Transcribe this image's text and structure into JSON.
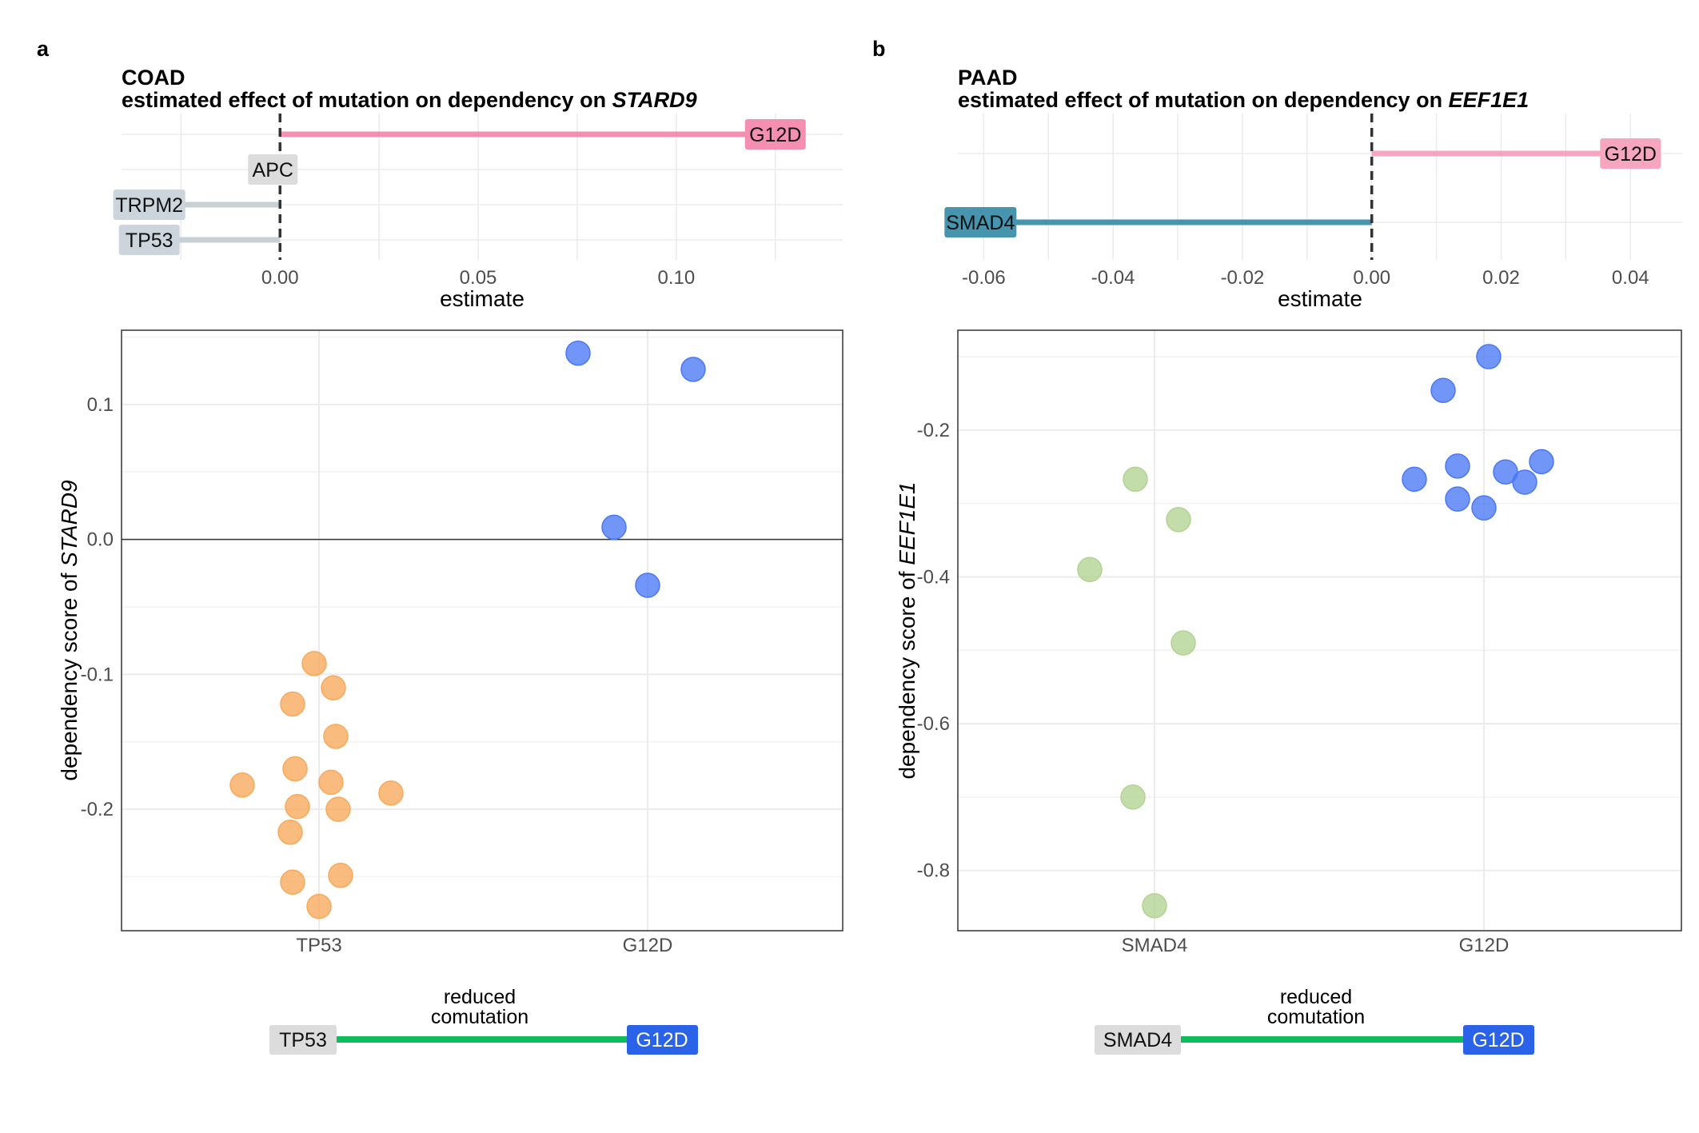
{
  "colors": {
    "g12d_pink": "#f48fb1",
    "g12d_pink_light": "#f7a6bf",
    "smad4_teal": "#4694ae",
    "gray_label": "#dcdcdc",
    "gray_bar": "#c8d0d6",
    "gray_label_blue": "#ccd5dc",
    "orange_point": "#f8a95a",
    "blue_point": "#4a78f5",
    "green_point": "#b2d392",
    "comut_green": "#0dbc5a",
    "g12d_blue_label": "#2a63e8"
  },
  "panels": [
    {
      "letter": "a",
      "title_line1": "COAD",
      "title_line2_prefix": "estimated effect of mutation on dependency on ",
      "gene": "STARD9",
      "chart_data": [
        {
          "type": "bar",
          "orientation": "horizontal",
          "xlabel": "estimate",
          "xticks": [
            0.0,
            0.05,
            0.1
          ],
          "xtick_labels": [
            "0.00",
            "0.05",
            "0.10"
          ],
          "xlim": [
            -0.04,
            0.142
          ],
          "zero_line": "dashed",
          "bars": [
            {
              "label": "G12D",
              "value": 0.125,
              "color": "#f48fb1",
              "label_bg": "#f48fb1"
            },
            {
              "label": "APC",
              "value": 0.0,
              "color": "#c8d0d6",
              "label_bg": "#dcdcdc"
            },
            {
              "label": "TRPM2",
              "value": -0.033,
              "color": "#c8d0d6",
              "label_bg": "#ccd5dc"
            },
            {
              "label": "TP53",
              "value": -0.033,
              "color": "#c8d0d6",
              "label_bg": "#ccd5dc"
            }
          ]
        },
        {
          "type": "scatter",
          "ylabel_prefix": "dependency score of ",
          "ylabel_gene": "STARD9",
          "categories": [
            "TP53",
            "G12D"
          ],
          "yticks": [
            0.1,
            0.0,
            -0.1,
            -0.2
          ],
          "ytick_labels": [
            "0.1",
            "0.0",
            "-0.1",
            "-0.2"
          ],
          "ylim": [
            -0.29,
            0.155
          ],
          "hline": 0.0,
          "grid": true,
          "series": [
            {
              "category": "TP53",
              "color": "#f8a95a",
              "points": [
                {
                  "xoff": -0.32,
                  "y": -0.182
                },
                {
                  "xoff": -0.11,
                  "y": -0.122
                },
                {
                  "xoff": -0.1,
                  "y": -0.17
                },
                {
                  "xoff": -0.09,
                  "y": -0.198
                },
                {
                  "xoff": -0.12,
                  "y": -0.217
                },
                {
                  "xoff": -0.11,
                  "y": -0.254
                },
                {
                  "xoff": -0.02,
                  "y": -0.092
                },
                {
                  "xoff": 0.06,
                  "y": -0.11
                },
                {
                  "xoff": 0.07,
                  "y": -0.146
                },
                {
                  "xoff": 0.05,
                  "y": -0.18
                },
                {
                  "xoff": 0.08,
                  "y": -0.2
                },
                {
                  "xoff": 0.09,
                  "y": -0.249
                },
                {
                  "xoff": 0.0,
                  "y": -0.272
                },
                {
                  "xoff": 0.3,
                  "y": -0.188
                }
              ]
            },
            {
              "category": "G12D",
              "color": "#4a78f5",
              "points": [
                {
                  "xoff": -0.29,
                  "y": 0.138
                },
                {
                  "xoff": 0.19,
                  "y": 0.126
                },
                {
                  "xoff": -0.14,
                  "y": 0.009
                },
                {
                  "xoff": 0.0,
                  "y": -0.034
                }
              ]
            }
          ]
        }
      ],
      "comutation": {
        "caption_line1": "reduced",
        "caption_line2": "comutation",
        "left_label": "TP53",
        "right_label": "G12D"
      }
    },
    {
      "letter": "b",
      "title_line1": "PAAD",
      "title_line2_prefix": "estimated effect of mutation on dependency on ",
      "gene": "EEF1E1",
      "chart_data": [
        {
          "type": "bar",
          "orientation": "horizontal",
          "xlabel": "estimate",
          "xticks": [
            -0.06,
            -0.04,
            -0.02,
            0.0,
            0.02,
            0.04
          ],
          "xtick_labels": [
            "-0.06",
            "-0.04",
            "-0.02",
            "0.00",
            "0.02",
            "0.04"
          ],
          "xlim": [
            -0.064,
            0.048
          ],
          "zero_line": "dashed",
          "bars": [
            {
              "label": "G12D",
              "value": 0.04,
              "color": "#f7a6bf",
              "label_bg": "#f7a6bf"
            },
            {
              "label": "SMAD4",
              "value": -0.0605,
              "color": "#4694ae",
              "label_bg": "#4694ae"
            }
          ]
        },
        {
          "type": "scatter",
          "ylabel_prefix": "dependency score of ",
          "ylabel_gene": "EEF1E1",
          "categories": [
            "SMAD4",
            "G12D"
          ],
          "yticks": [
            -0.2,
            -0.4,
            -0.6,
            -0.8
          ],
          "ytick_labels": [
            "-0.2",
            "-0.4",
            "-0.6",
            "-0.8"
          ],
          "ylim": [
            -0.882,
            -0.064
          ],
          "grid": true,
          "series": [
            {
              "category": "SMAD4",
              "color": "#b2d392",
              "points": [
                {
                  "xoff": -0.27,
                  "y": -0.39
                },
                {
                  "xoff": -0.08,
                  "y": -0.267
                },
                {
                  "xoff": 0.1,
                  "y": -0.322
                },
                {
                  "xoff": 0.12,
                  "y": -0.49
                },
                {
                  "xoff": -0.09,
                  "y": -0.7
                },
                {
                  "xoff": 0.0,
                  "y": -0.848
                }
              ]
            },
            {
              "category": "G12D",
              "color": "#4a78f5",
              "points": [
                {
                  "xoff": 0.02,
                  "y": -0.1
                },
                {
                  "xoff": -0.17,
                  "y": -0.146
                },
                {
                  "xoff": -0.29,
                  "y": -0.267
                },
                {
                  "xoff": -0.11,
                  "y": -0.249
                },
                {
                  "xoff": -0.11,
                  "y": -0.294
                },
                {
                  "xoff": 0.0,
                  "y": -0.306
                },
                {
                  "xoff": 0.09,
                  "y": -0.257
                },
                {
                  "xoff": 0.17,
                  "y": -0.271
                },
                {
                  "xoff": 0.24,
                  "y": -0.243
                }
              ]
            }
          ]
        }
      ],
      "comutation": {
        "caption_line1": "reduced",
        "caption_line2": "comutation",
        "left_label": "SMAD4",
        "right_label": "G12D"
      }
    }
  ]
}
